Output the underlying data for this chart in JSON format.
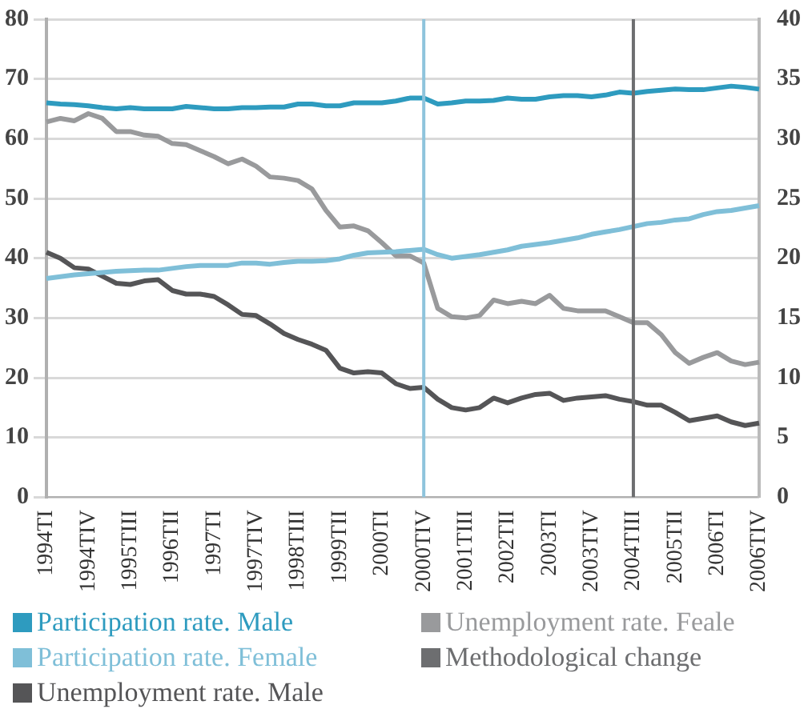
{
  "chart_data": {
    "type": "line",
    "categories": [
      "1994TI",
      null,
      null,
      "1994TIV",
      null,
      null,
      "1995TIII",
      null,
      null,
      "1996TII",
      null,
      null,
      "1997TI",
      null,
      null,
      "1997TIV",
      null,
      null,
      "1998TIII",
      null,
      null,
      "1999TII",
      null,
      null,
      "2000TI",
      null,
      null,
      "2000TIV",
      null,
      null,
      "2001TIII",
      null,
      null,
      "2002TII",
      null,
      null,
      "2003TI",
      null,
      null,
      "2003TIV",
      null,
      null,
      "2004TIII",
      null,
      null,
      "2005TII",
      null,
      null,
      "2006TI",
      null,
      null,
      "2006TIV"
    ],
    "series": [
      {
        "name": "Participation rate. Male",
        "color": "#2e9bbf",
        "values": [
          66,
          65.8,
          65.7,
          65.5,
          65.2,
          65,
          65.2,
          65,
          65,
          65,
          65.4,
          65.2,
          65,
          65,
          65.2,
          65.2,
          65.3,
          65.3,
          65.8,
          65.8,
          65.5,
          65.5,
          66,
          66,
          66,
          66.3,
          66.8,
          66.8,
          65.8,
          66,
          66.3,
          66.3,
          66.4,
          66.8,
          66.6,
          66.6,
          67,
          67.2,
          67.2,
          67,
          67.3,
          67.8,
          67.6,
          67.9,
          68.1,
          68.3,
          68.2,
          68.2,
          68.5,
          68.8,
          68.6,
          68.3
        ]
      },
      {
        "name": "Participation rate. Female",
        "color": "#7fbfd8",
        "values": [
          36.6,
          36.9,
          37.2,
          37.4,
          37.6,
          37.8,
          37.9,
          38,
          38,
          38.3,
          38.6,
          38.8,
          38.8,
          38.8,
          39.2,
          39.2,
          39,
          39.3,
          39.5,
          39.5,
          39.6,
          39.9,
          40.5,
          40.9,
          41,
          41.1,
          41.3,
          41.5,
          40.6,
          40,
          40.3,
          40.6,
          41,
          41.4,
          42,
          42.3,
          42.6,
          43,
          43.4,
          44,
          44.4,
          44.8,
          45.3,
          45.8,
          46,
          46.4,
          46.6,
          47.3,
          47.8,
          48,
          48.4,
          48.8
        ]
      },
      {
        "name": "Unemployment rate. Male",
        "color": "#555557",
        "axis": "y2",
        "values": [
          20.5,
          20,
          19.2,
          19.1,
          18.5,
          17.9,
          17.8,
          18.1,
          18.2,
          17.3,
          17,
          17,
          16.8,
          16.1,
          15.3,
          15.2,
          14.5,
          13.7,
          13.2,
          12.8,
          12.3,
          10.8,
          10.4,
          10.5,
          10.4,
          9.5,
          9.1,
          9.2,
          8.2,
          7.5,
          7.3,
          7.5,
          8.3,
          7.9,
          8.3,
          8.6,
          8.7,
          8.1,
          8.3,
          8.4,
          8.5,
          8.2,
          8,
          7.7,
          7.7,
          7.1,
          6.4,
          6.6,
          6.8,
          6.3,
          6,
          6.2
        ]
      },
      {
        "name": "Unemployment rate. Feale",
        "color": "#999a9c",
        "axis": "y2",
        "values": [
          31.4,
          31.7,
          31.5,
          32.1,
          31.7,
          30.6,
          30.6,
          30.3,
          30.2,
          29.6,
          29.5,
          29,
          28.5,
          27.9,
          28.3,
          27.7,
          26.8,
          26.7,
          26.5,
          25.8,
          24,
          22.6,
          22.7,
          22.3,
          21.3,
          20.2,
          20.2,
          19.6,
          15.8,
          15.1,
          15,
          15.2,
          16.5,
          16.2,
          16.4,
          16.2,
          16.9,
          15.8,
          15.6,
          15.6,
          15.6,
          15.1,
          14.6,
          14.6,
          13.6,
          12.1,
          11.2,
          11.7,
          12.1,
          11.4,
          11.1,
          11.3
        ]
      }
    ],
    "ylim": [
      0,
      80
    ],
    "yticks": [
      0,
      10,
      20,
      30,
      40,
      50,
      60,
      70,
      80
    ],
    "y2lim": [
      0,
      40
    ],
    "y2ticks": [
      0,
      5,
      10,
      15,
      20,
      25,
      30,
      35,
      40
    ],
    "ref_lines": [
      {
        "axis": "x",
        "value": "2000TIV",
        "color": "#8ec4dc"
      },
      {
        "axis": "x",
        "value": "2004TIII",
        "label": "Methodological change",
        "color": "#6d6e70"
      }
    ],
    "grid": "y",
    "legend": "bottom",
    "marker": "none",
    "line_style": "solid"
  }
}
